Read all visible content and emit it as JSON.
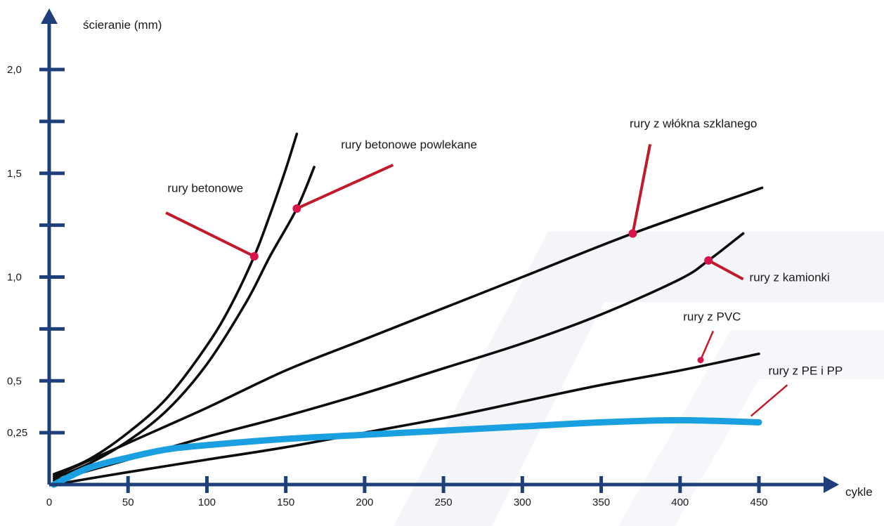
{
  "colors": {
    "axis": "#1f3f7a",
    "line": "#0d0d0d",
    "highlight": "#1aa0e0",
    "pointer": "#c21a2b",
    "dot": "#d8154a",
    "watermark": "#e9edf3"
  },
  "chart_data": {
    "type": "line",
    "title": "",
    "xlabel": "cykle",
    "ylabel": "ścieranie (mm)",
    "xlim": [
      0,
      500
    ],
    "ylim": [
      0,
      2.25
    ],
    "x_ticks": [
      0,
      50,
      100,
      150,
      200,
      250,
      300,
      350,
      400,
      450
    ],
    "x_tick_labels": [
      "0",
      "50",
      "100",
      "150",
      "200",
      "250",
      "300",
      "350",
      "400",
      "450"
    ],
    "y_ticks": [
      0.25,
      0.5,
      0.75,
      1.0,
      1.25,
      1.5,
      1.75,
      2.0
    ],
    "y_tick_labels": [
      "0,25",
      "0,5",
      "",
      "1,0",
      "",
      "1,5",
      "",
      "2,0"
    ],
    "grid": false,
    "legend": "none",
    "series": [
      {
        "name": "rury betonowe",
        "color": "line",
        "points": [
          [
            3,
            0.05
          ],
          [
            25,
            0.12
          ],
          [
            50,
            0.25
          ],
          [
            75,
            0.42
          ],
          [
            100,
            0.67
          ],
          [
            115,
            0.86
          ],
          [
            130,
            1.1
          ],
          [
            140,
            1.3
          ],
          [
            150,
            1.52
          ],
          [
            157,
            1.69
          ]
        ],
        "label_at": [
          75,
          1.41
        ],
        "pointer_from": [
          74,
          1.31
        ],
        "pointer_to": [
          130,
          1.1
        ]
      },
      {
        "name": "rury betonowe powlekane",
        "color": "line",
        "points": [
          [
            3,
            0.03
          ],
          [
            25,
            0.1
          ],
          [
            50,
            0.21
          ],
          [
            75,
            0.36
          ],
          [
            100,
            0.58
          ],
          [
            125,
            0.88
          ],
          [
            140,
            1.1
          ],
          [
            157,
            1.33
          ],
          [
            168,
            1.53
          ]
        ],
        "label_at": [
          185,
          1.62
        ],
        "pointer_from": [
          218,
          1.54
        ],
        "pointer_to": [
          157,
          1.33
        ]
      },
      {
        "name": "rury z włókna szklanego",
        "color": "line",
        "points": [
          [
            3,
            0.04
          ],
          [
            50,
            0.2
          ],
          [
            100,
            0.37
          ],
          [
            150,
            0.55
          ],
          [
            200,
            0.7
          ],
          [
            250,
            0.85
          ],
          [
            300,
            1.0
          ],
          [
            370,
            1.21
          ],
          [
            452,
            1.43
          ]
        ],
        "label_at": [
          368,
          1.72
        ],
        "pointer_from": [
          381,
          1.64
        ],
        "pointer_to": [
          370,
          1.21
        ]
      },
      {
        "name": "rury z kamionki",
        "color": "line",
        "points": [
          [
            3,
            0.02
          ],
          [
            50,
            0.12
          ],
          [
            100,
            0.23
          ],
          [
            150,
            0.33
          ],
          [
            200,
            0.44
          ],
          [
            250,
            0.56
          ],
          [
            300,
            0.68
          ],
          [
            350,
            0.82
          ],
          [
            400,
            0.99
          ],
          [
            418,
            1.08
          ],
          [
            440,
            1.21
          ]
        ],
        "label_at": [
          444,
          0.98
        ],
        "pointer_from": [
          440,
          0.99
        ],
        "pointer_to": [
          418,
          1.08
        ]
      },
      {
        "name": "rury z PVC",
        "color": "line",
        "points": [
          [
            3,
            0.0
          ],
          [
            50,
            0.06
          ],
          [
            100,
            0.12
          ],
          [
            150,
            0.18
          ],
          [
            200,
            0.25
          ],
          [
            250,
            0.32
          ],
          [
            300,
            0.4
          ],
          [
            350,
            0.48
          ],
          [
            400,
            0.55
          ],
          [
            450,
            0.63
          ]
        ],
        "label_at": [
          402,
          0.79
        ],
        "pointer_from": [
          421,
          0.74
        ],
        "pointer_to": [
          413,
          0.6
        ]
      },
      {
        "name": "rury z PE i PP",
        "color": "highlight",
        "points": [
          [
            3,
            0.0
          ],
          [
            25,
            0.08
          ],
          [
            50,
            0.13
          ],
          [
            75,
            0.17
          ],
          [
            100,
            0.19
          ],
          [
            150,
            0.22
          ],
          [
            200,
            0.24
          ],
          [
            250,
            0.26
          ],
          [
            300,
            0.28
          ],
          [
            350,
            0.3
          ],
          [
            400,
            0.31
          ],
          [
            450,
            0.3
          ]
        ],
        "label_at": [
          456,
          0.53
        ],
        "pointer_from": [
          468,
          0.48
        ],
        "pointer_to": [
          445,
          0.33
        ]
      }
    ]
  }
}
